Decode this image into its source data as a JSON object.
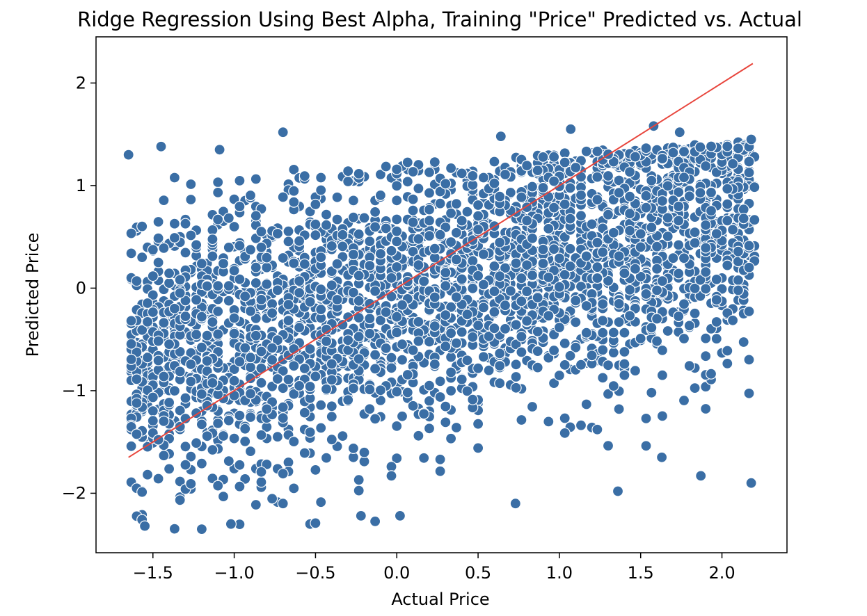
{
  "chart_data": {
    "type": "scatter",
    "title": "Ridge Regression Using Best Alpha, Training \"Price\" Predicted vs. Actual",
    "xlabel": "Actual Price",
    "ylabel": "Predicted Price",
    "xlim": [
      -1.85,
      2.4
    ],
    "ylim": [
      -2.58,
      2.45
    ],
    "xticks": [
      -1.5,
      -1.0,
      -0.5,
      0.0,
      0.5,
      1.0,
      1.5,
      2.0
    ],
    "xtick_labels": [
      "−1.5",
      "−1.0",
      "−0.5",
      "0.0",
      "0.5",
      "1.0",
      "1.5",
      "2.0"
    ],
    "yticks": [
      -2,
      -1,
      0,
      1,
      2
    ],
    "ytick_labels": [
      "−2",
      "−1",
      "0",
      "1",
      "2"
    ],
    "grid": false,
    "legend": "none",
    "colors": {
      "points": "#3a6ea5",
      "point_edge": "#ffffff",
      "line": "#e8453c"
    },
    "reference_line": {
      "x": [
        -1.65,
        2.19
      ],
      "y": [
        -1.65,
        2.19
      ]
    },
    "point_count": 3000,
    "sample_points": [
      [
        -1.55,
        -2.32
      ],
      [
        -1.2,
        -2.35
      ],
      [
        -1.02,
        -2.3
      ],
      [
        -0.7,
        -2.1
      ],
      [
        -0.22,
        -2.22
      ],
      [
        0.02,
        -2.22
      ],
      [
        0.73,
        -2.1
      ],
      [
        1.36,
        -1.98
      ],
      [
        1.87,
        -1.83
      ],
      [
        2.18,
        -1.9
      ],
      [
        -0.7,
        1.52
      ],
      [
        -1.09,
        1.35
      ],
      [
        1.07,
        1.55
      ],
      [
        1.58,
        1.58
      ],
      [
        1.74,
        1.52
      ],
      [
        -1.65,
        1.3
      ],
      [
        2.18,
        1.45
      ],
      [
        -1.45,
        1.38
      ],
      [
        0.64,
        1.48
      ],
      [
        1.63,
        -1.65
      ]
    ]
  }
}
